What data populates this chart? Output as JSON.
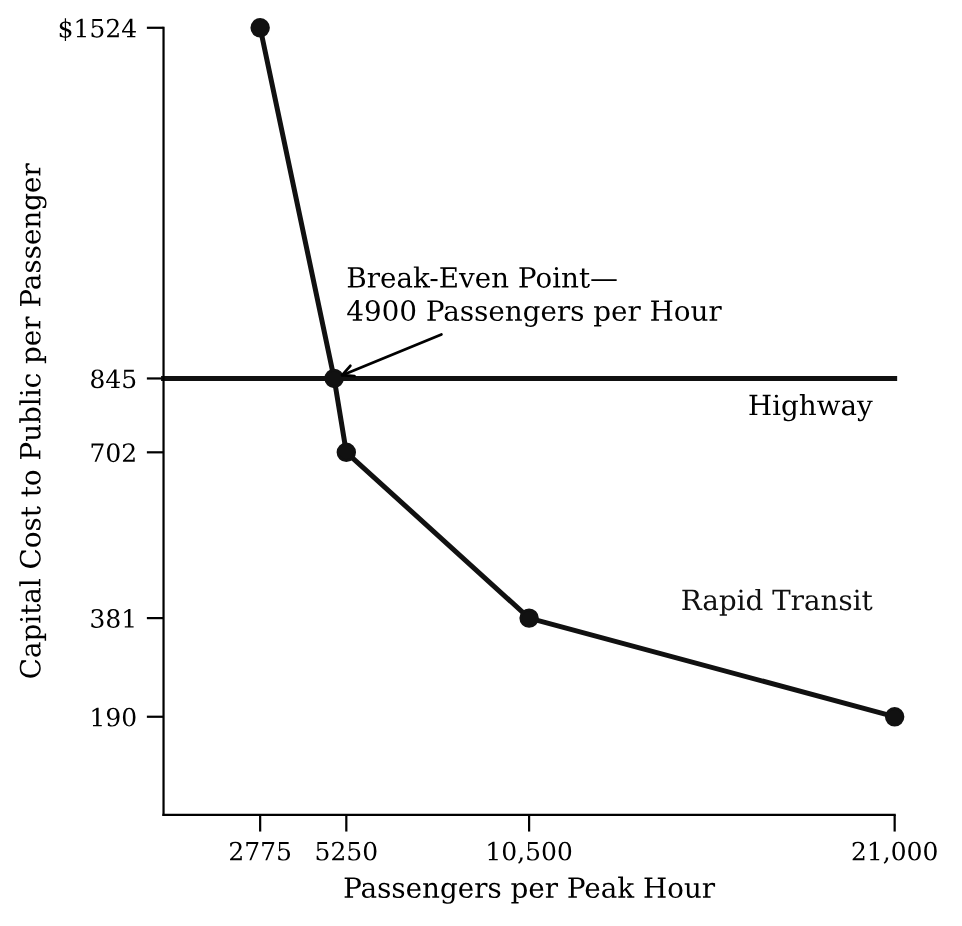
{
  "chart_data": {
    "type": "line",
    "xlabel": "Passengers per Peak Hour",
    "ylabel": "Capital Cost to Public per Passenger",
    "x": [
      2775,
      4900,
      5250,
      10500,
      21000
    ],
    "series": [
      {
        "name": "Rapid Transit",
        "color": "#111111",
        "values": [
          1524,
          845,
          702,
          381,
          190
        ]
      }
    ],
    "xlim": [
      0,
      21000
    ],
    "ylim": [
      0,
      1524
    ],
    "xticks": [
      2775,
      5250,
      {
        "value": 10500,
        "label": "10,500"
      },
      {
        "value": 21000,
        "label": "21,000"
      }
    ],
    "yticks": [
      190,
      381,
      702,
      845,
      {
        "value": 1524,
        "label": "$1524"
      }
    ],
    "ref_lines": [
      {
        "axis": "y",
        "value": 845,
        "label": "Highway",
        "color": "#111111"
      }
    ],
    "annotations": [
      {
        "text": "Break-Even Point—\n4900 Passengers per Hour",
        "x": 4900,
        "y": 845
      }
    ],
    "marker": "circle",
    "line_style": "solid",
    "grid": false,
    "legend": false
  }
}
